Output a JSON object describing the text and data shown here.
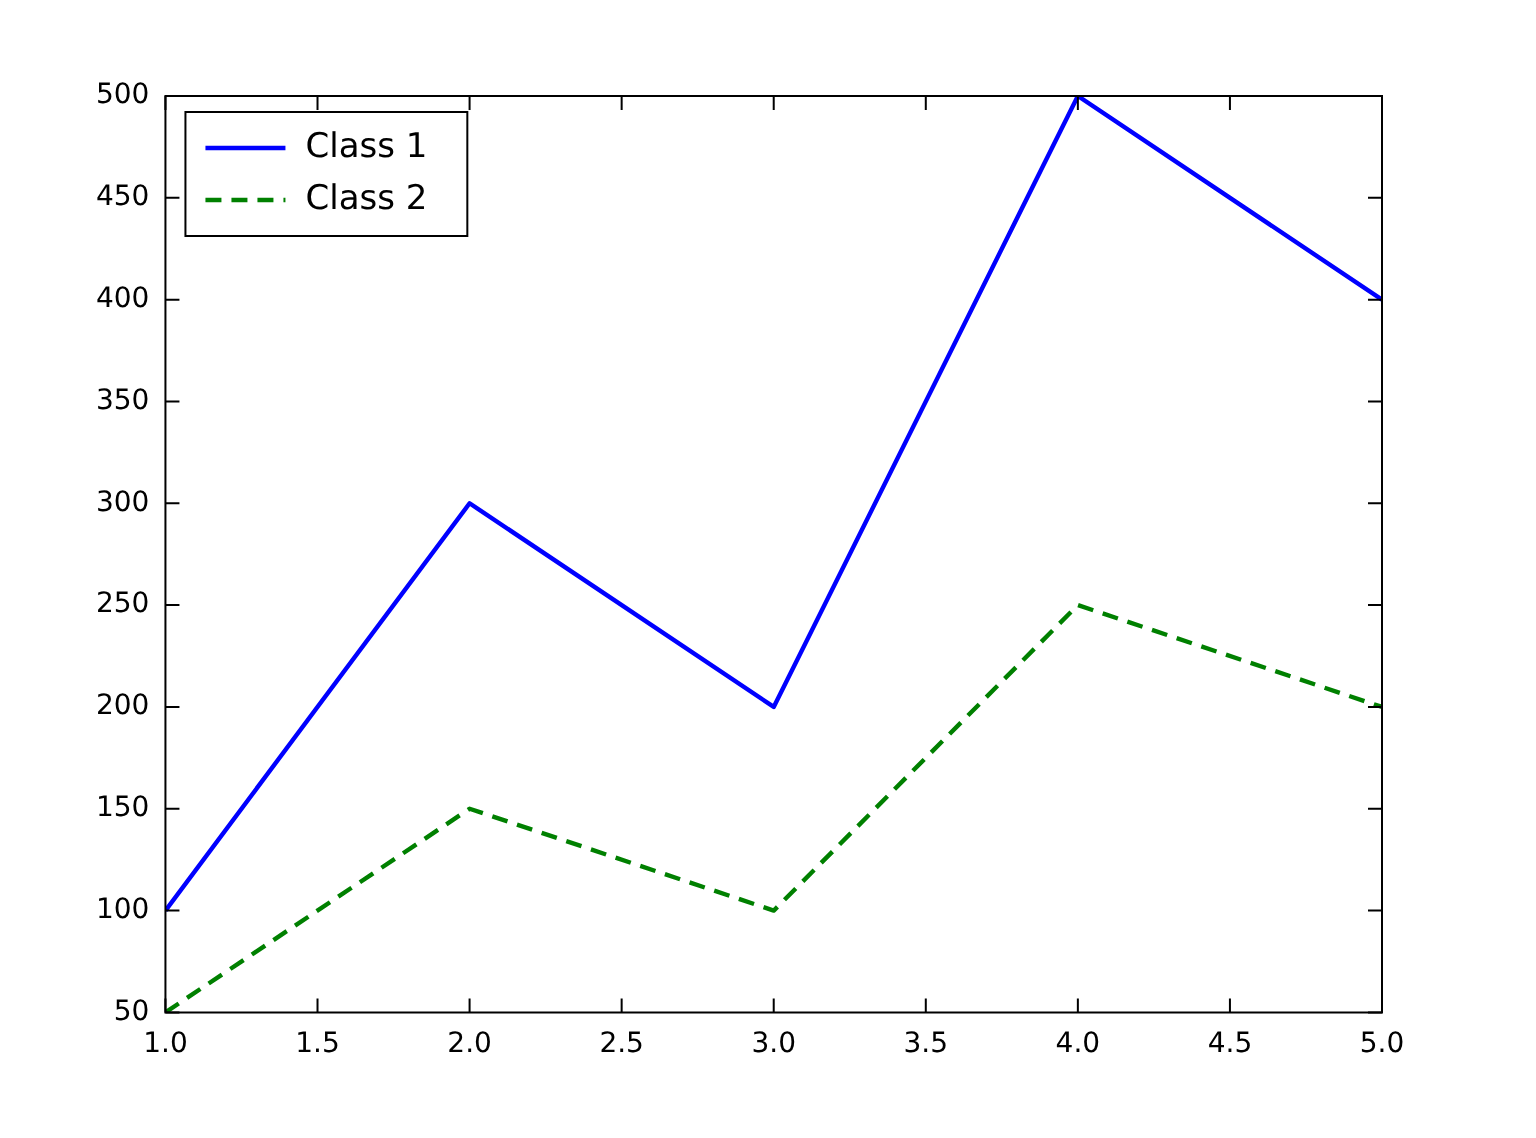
{
  "chart_data": {
    "type": "line",
    "x": [
      1,
      2,
      3,
      4,
      5
    ],
    "series": [
      {
        "name": "Class 1",
        "color": "#0000ff",
        "values": [
          100,
          300,
          200,
          500,
          400
        ],
        "line_style": "solid"
      },
      {
        "name": "Class 2",
        "color": "#008000",
        "values": [
          50,
          150,
          100,
          250,
          200
        ],
        "line_style": "dashed"
      }
    ],
    "xlim": [
      1,
      5
    ],
    "xticks": [
      {
        "value": 1,
        "label": "1.0"
      },
      {
        "value": 1.5,
        "label": "1.5"
      },
      {
        "value": 2,
        "label": "2.0"
      },
      {
        "value": 2.5,
        "label": "2.5"
      },
      {
        "value": 3,
        "label": "3.0"
      },
      {
        "value": 3.5,
        "label": "3.5"
      },
      {
        "value": 4,
        "label": "4.0"
      },
      {
        "value": 4.5,
        "label": "4.5"
      },
      {
        "value": 5,
        "label": "5.0"
      }
    ],
    "ylim": [
      50,
      500
    ],
    "yticks": [
      50,
      100,
      150,
      200,
      250,
      300,
      350,
      400,
      450,
      500
    ],
    "grid": false,
    "legend": "top left",
    "marker": "none"
  }
}
